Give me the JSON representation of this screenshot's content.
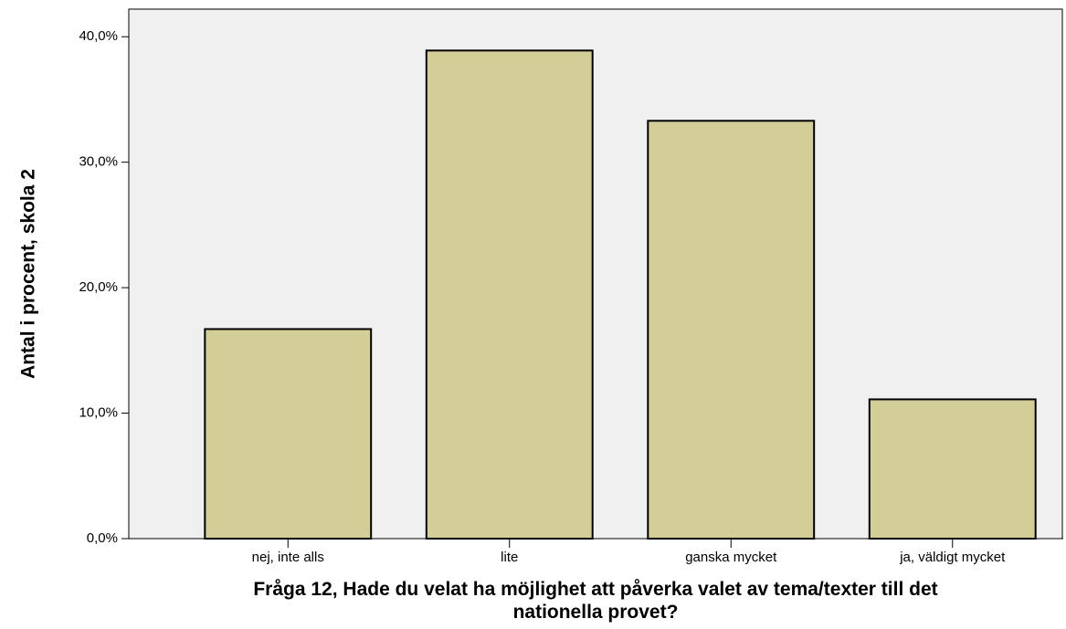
{
  "chart_data": {
    "type": "bar",
    "xlabel": "Fråga 12, Hade du velat ha möjlighet att påverka valet av tema/texter till det nationella provet?",
    "ylabel": "Antal i procent, skola 2",
    "categories": [
      "nej, inte alls",
      "lite",
      "ganska mycket",
      "ja, väldigt mycket"
    ],
    "values": [
      16.7,
      38.9,
      33.3,
      11.1
    ],
    "color": "#d3cd97",
    "ylim": [
      0,
      42.2
    ],
    "yticks": [
      {
        "value": 0,
        "label": "0,0%"
      },
      {
        "value": 10,
        "label": "10,0%"
      },
      {
        "value": 20,
        "label": "20,0%"
      },
      {
        "value": 30,
        "label": "30,0%"
      },
      {
        "value": 40,
        "label": "40,0%"
      }
    ]
  }
}
